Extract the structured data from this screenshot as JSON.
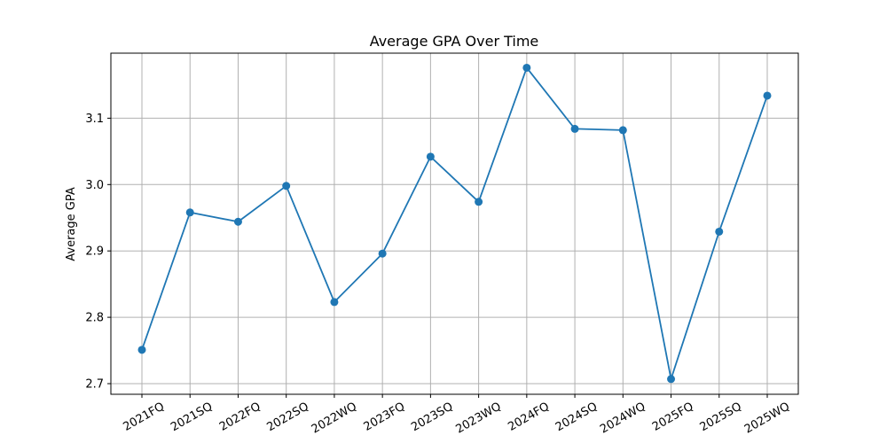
{
  "chart_data": {
    "type": "line",
    "title": "Average GPA Over Time",
    "xlabel": "",
    "ylabel": "Average GPA",
    "categories": [
      "2021FQ",
      "2021SQ",
      "2022FQ",
      "2022SQ",
      "2022WQ",
      "2023FQ",
      "2023SQ",
      "2023WQ",
      "2024FQ",
      "2024SQ",
      "2024WQ",
      "2025FQ",
      "2025SQ",
      "2025WQ"
    ],
    "series": [
      {
        "values": [
          2.751,
          2.958,
          2.944,
          2.998,
          2.823,
          2.896,
          3.042,
          2.974,
          3.176,
          3.084,
          3.082,
          2.707,
          2.929,
          3.134
        ],
        "color": "#1f77b4"
      }
    ],
    "ylim": [
      2.684,
      3.198
    ],
    "yticks": [
      "2.7",
      "2.8",
      "2.9",
      "3.0",
      "3.1"
    ],
    "grid": true,
    "legend": "none"
  }
}
